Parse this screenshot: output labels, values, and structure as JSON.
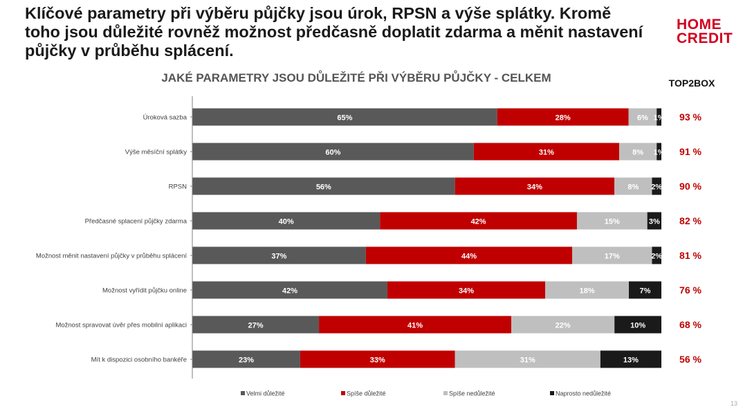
{
  "headline": "Klíčové parametry při výběru půjčky jsou úrok, RPSN a výše splátky. Kromě toho jsou důležité rovněž možnost předčasně doplatit zdarma a měnit nastavení půjčky v průběhu splácení.",
  "logo": {
    "line1": "HOME",
    "line2": "CREDIT"
  },
  "top2box_label": "TOP2BOX",
  "page_number": "13",
  "chart_data": {
    "type": "bar",
    "orientation": "horizontal",
    "stacked": true,
    "percent_stacked": true,
    "title": "JAKÉ PARAMETRY JSOU DŮLEŽITÉ PŘI VÝBĚRU PŮJČKY - CELKEM",
    "categories": [
      "Úroková sazba",
      "Výše měsíční splátky",
      "RPSN",
      "Předčasné splacení půjčky zdarma",
      "Možnost měnit nastavení půjčky v průběhu splácení",
      "Možnost vyřídit půjčku online",
      "Možnost spravovat úvěr přes mobilní aplikaci",
      "Mít k dispozici osobního bankéře"
    ],
    "series": [
      {
        "name": "Velmi důležité",
        "color": "#595959",
        "values": [
          65,
          60,
          56,
          40,
          37,
          42,
          27,
          23
        ]
      },
      {
        "name": "Spíše důležité",
        "color": "#c00000",
        "values": [
          28,
          31,
          34,
          42,
          44,
          34,
          41,
          33
        ]
      },
      {
        "name": "Spíše nedůležité",
        "color": "#bfbfbf",
        "values": [
          6,
          8,
          8,
          15,
          17,
          18,
          22,
          31
        ]
      },
      {
        "name": "Naprosto nedůležité",
        "color": "#1a1a1a",
        "values": [
          1,
          1,
          2,
          3,
          2,
          7,
          10,
          13
        ]
      }
    ],
    "top2box": [
      "93 %",
      "91 %",
      "90 %",
      "82 %",
      "81 %",
      "76 %",
      "68 %",
      "56 %"
    ],
    "legend_position": "bottom",
    "grid": false
  }
}
